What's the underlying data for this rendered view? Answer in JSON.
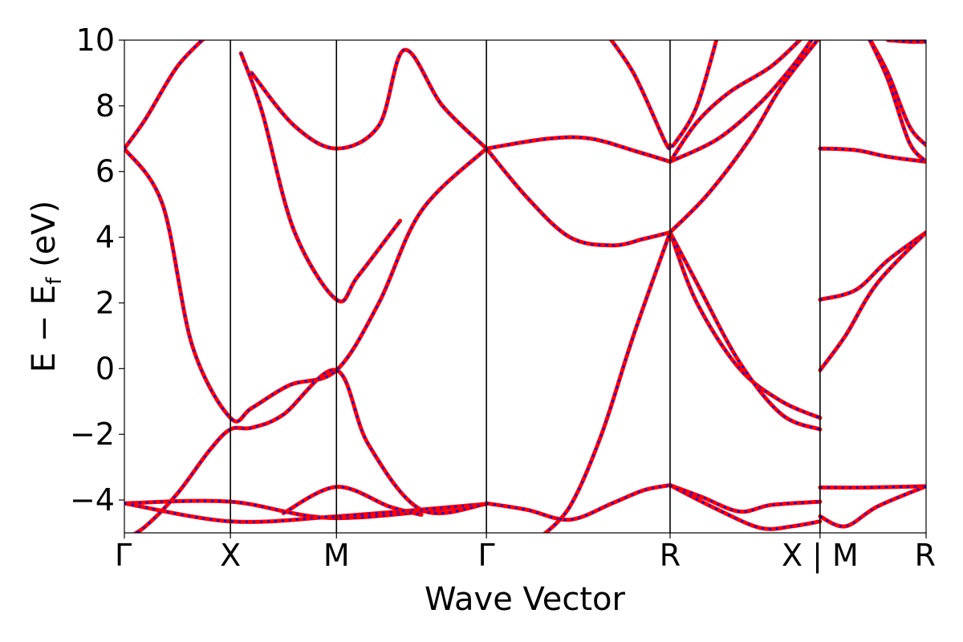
{
  "chart_data": {
    "type": "line",
    "title": "",
    "xlabel": "Wave Vector",
    "ylabel": "E − Ef (eV)",
    "ylabel_main": "E − E",
    "ylabel_sub": "f",
    "ylabel_unit": " (eV)",
    "ylim": [
      -5,
      10
    ],
    "yticks": [
      10,
      8,
      6,
      4,
      2,
      0,
      -2,
      -4
    ],
    "ytick_labels": [
      "10",
      "8",
      "6",
      "4",
      "2",
      "0",
      "−2",
      "−4"
    ],
    "k_path_labels": [
      "Γ",
      "X",
      "M",
      "Γ",
      "R",
      "X | M",
      "R"
    ],
    "k_path_positions": [
      0,
      0.5,
      1.0,
      1.7071,
      2.5731,
      3.2802,
      3.7802
    ],
    "grid": false,
    "legend": "none",
    "series_style": {
      "colors": [
        "#ff0000",
        "#0000ff"
      ],
      "line": "red solid overlaid with blue dashed"
    },
    "series": [
      {
        "x": [
          0,
          0.5,
          1.0,
          1.7071
        ],
        "values": [
          -4.1,
          -4.05,
          -4.55,
          -4.12
        ]
      },
      {
        "x": [
          0,
          0.5,
          1.0,
          1.7071
        ],
        "values": [
          -4.1,
          -4.65,
          -4.5,
          -4.12
        ]
      },
      {
        "x": [
          0,
          0.18,
          0.32,
          0.5,
          0.6,
          0.78,
          1.0,
          1.2,
          1.4,
          1.7071
        ],
        "values": [
          6.7,
          5.0,
          0.7,
          -1.5,
          -1.2,
          -0.5,
          -0.05,
          2.0,
          4.8,
          6.7
        ]
      },
      {
        "x": [
          0,
          0.1,
          0.25,
          0.4,
          0.5,
          0.6,
          0.75,
          1.0,
          1.15,
          1.4,
          1.7071
        ],
        "values": [
          -5.2,
          -4.8,
          -3.8,
          -2.5,
          -1.85,
          -1.8,
          -1.4,
          -0.05,
          -2.3,
          -4.3,
          -4.12
        ]
      },
      {
        "x": [
          0,
          0.1,
          0.25,
          0.4
        ],
        "values": [
          6.7,
          7.6,
          9.2,
          10.2
        ]
      },
      {
        "x": [
          0.6,
          0.8,
          1.0,
          1.2,
          1.32,
          1.5,
          1.7071
        ],
        "values": [
          9.0,
          7.4,
          6.7,
          7.4,
          9.7,
          8.0,
          6.7
        ]
      },
      {
        "x": [
          0.55,
          0.65,
          0.8,
          1.0,
          1.1,
          1.3
        ],
        "values": [
          9.6,
          7.8,
          4.2,
          2.1,
          2.8,
          4.5
        ]
      },
      {
        "x": [
          0.75,
          1.0,
          1.25,
          1.4
        ],
        "values": [
          -4.4,
          -3.6,
          -4.2,
          -4.45
        ]
      },
      {
        "x": [
          1.7071,
          2.0,
          2.2,
          2.42,
          2.5731
        ],
        "values": [
          6.7,
          7.0,
          7.0,
          6.6,
          6.3
        ]
      },
      {
        "x": [
          1.7071,
          1.9,
          2.1,
          2.3,
          2.45,
          2.5731
        ],
        "values": [
          6.7,
          5.2,
          4.0,
          3.75,
          3.95,
          4.15
        ]
      },
      {
        "x": [
          1.7071,
          1.9,
          2.1,
          2.3,
          2.45,
          2.5731
        ],
        "values": [
          -4.1,
          -4.3,
          -4.6,
          -4.1,
          -3.7,
          -3.55
        ]
      },
      {
        "x": [
          1.95,
          2.1,
          2.25,
          2.4,
          2.5731
        ],
        "values": [
          -5.2,
          -4.2,
          -2.0,
          1.0,
          4.15
        ]
      },
      {
        "x": [
          2.5731,
          2.7,
          2.9,
          3.1,
          3.2802
        ],
        "values": [
          4.15,
          2.0,
          0.0,
          -1.0,
          -1.5
        ]
      },
      {
        "x": [
          2.5731,
          2.7,
          2.9,
          3.1,
          3.2802
        ],
        "values": [
          4.15,
          2.6,
          0.2,
          -1.4,
          -1.85
        ]
      },
      {
        "x": [
          2.5731,
          2.75,
          2.95,
          3.1,
          3.2802
        ],
        "values": [
          4.15,
          5.3,
          7.0,
          8.6,
          10.1
        ]
      },
      {
        "x": [
          2.5731,
          2.8,
          3.0,
          3.15,
          3.25
        ],
        "values": [
          6.3,
          7.0,
          8.1,
          9.2,
          10.1
        ]
      },
      {
        "x": [
          2.5731,
          2.7,
          2.85,
          3.05,
          3.2
        ],
        "values": [
          6.3,
          7.5,
          8.4,
          9.2,
          10.1
        ]
      },
      {
        "x": [
          2.25,
          2.4,
          2.55,
          2.5731,
          2.6,
          2.7,
          2.8
        ],
        "values": [
          10.4,
          9.0,
          6.9,
          6.8,
          6.9,
          8.0,
          10.2
        ]
      },
      {
        "x": [
          2.5731,
          2.72,
          2.9,
          3.05,
          3.2802
        ],
        "values": [
          -3.55,
          -3.9,
          -4.35,
          -4.15,
          -4.05
        ]
      },
      {
        "x": [
          2.5731,
          2.8,
          3.0,
          3.15,
          3.2802
        ],
        "values": [
          -3.55,
          -4.3,
          -4.85,
          -4.8,
          -4.65
        ]
      },
      {
        "x": [
          3.2802,
          3.45,
          3.6,
          3.7802
        ],
        "values": [
          6.7,
          6.65,
          6.45,
          6.3
        ]
      },
      {
        "x": [
          3.2802,
          3.45,
          3.6,
          3.7802
        ],
        "values": [
          2.1,
          2.4,
          3.3,
          4.15
        ]
      },
      {
        "x": [
          3.2802,
          3.4,
          3.55,
          3.7802
        ],
        "values": [
          -0.05,
          1.0,
          2.6,
          4.15
        ]
      },
      {
        "x": [
          3.2802,
          3.5,
          3.7802
        ],
        "values": [
          -3.62,
          -3.62,
          -3.58
        ]
      },
      {
        "x": [
          3.2802,
          3.4,
          3.55,
          3.7802
        ],
        "values": [
          -4.5,
          -4.8,
          -4.2,
          -3.58
        ]
      },
      {
        "x": [
          3.5,
          3.6,
          3.7,
          3.7802
        ],
        "values": [
          10.2,
          9.0,
          7.4,
          6.8
        ]
      },
      {
        "x": [
          3.5,
          3.6,
          3.7,
          3.7802
        ],
        "values": [
          10.2,
          8.8,
          6.9,
          6.3
        ]
      },
      {
        "x": [
          3.6,
          3.7,
          3.7802
        ],
        "values": [
          10.0,
          9.95,
          9.95
        ]
      }
    ]
  }
}
